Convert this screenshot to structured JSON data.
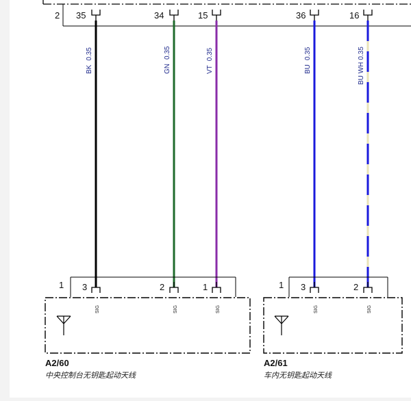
{
  "top_connector": {
    "left_pin": "2",
    "pins": [
      "35",
      "34",
      "15",
      "36",
      "16"
    ]
  },
  "wires": [
    {
      "code": "BK",
      "size": "0.35",
      "color": "#000000"
    },
    {
      "code": "GN",
      "size": "0.35",
      "color": "#1f6b2c"
    },
    {
      "code": "VT",
      "size": "0.35",
      "color": "#8a2da8"
    },
    {
      "code": "BU",
      "size": "0.35",
      "color": "#1a1adc"
    },
    {
      "code": "BU WH",
      "size": "0.35",
      "color": "#1a1adc",
      "stripe": "#ffffff"
    }
  ],
  "components": [
    {
      "id": "A2/60",
      "description": "中央控制台无钥匙起动天线",
      "connector_left_pin": "1",
      "pins": [
        "3",
        "2",
        "1"
      ],
      "pin_function": "SIG"
    },
    {
      "id": "A2/61",
      "description": "车内无钥匙起动天线",
      "connector_left_pin": "1",
      "pins": [
        "3",
        "2"
      ],
      "pin_function": "SIG"
    }
  ],
  "icons": [
    "antenna-icon",
    "antenna-icon"
  ]
}
